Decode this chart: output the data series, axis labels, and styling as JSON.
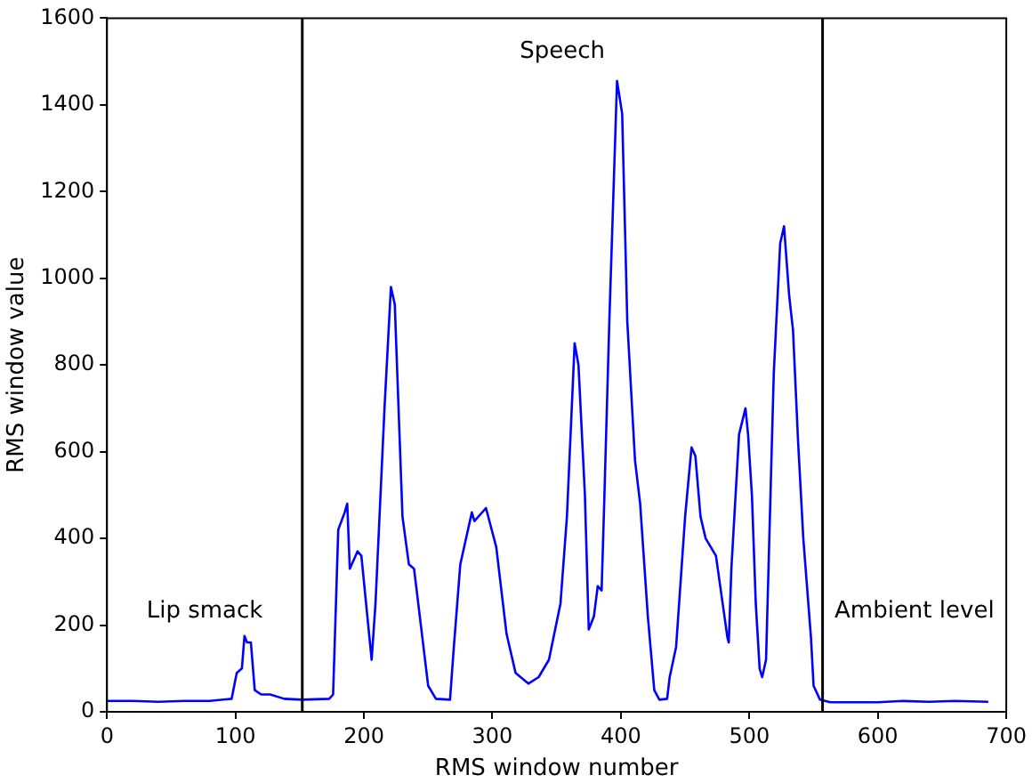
{
  "chart_data": {
    "type": "line",
    "xlabel": "RMS window number",
    "ylabel": "RMS window value",
    "xlim": [
      0,
      700
    ],
    "xticks": [
      0,
      100,
      200,
      300,
      400,
      500,
      600,
      700
    ],
    "ylim": [
      0,
      1600
    ],
    "yticks": [
      0,
      200,
      400,
      600,
      800,
      1000,
      1200,
      1400,
      1600
    ],
    "grid": false,
    "legend": false,
    "marker": "none",
    "line_style": "solid",
    "series": [
      {
        "color": "#0000ff",
        "x": [
          0,
          20,
          40,
          60,
          80,
          97,
          101,
          105,
          107,
          109,
          112,
          115,
          120,
          127,
          138,
          152,
          173,
          176,
          180,
          185,
          187,
          189,
          195,
          198,
          206,
          209,
          216,
          221,
          224,
          230,
          235,
          239,
          250,
          256,
          267,
          270,
          275,
          284,
          286,
          295,
          303,
          311,
          318,
          328,
          336,
          344,
          353,
          358,
          364,
          367,
          372,
          375,
          379,
          382,
          385,
          387,
          391,
          397,
          401,
          405,
          411,
          415,
          421,
          426,
          430,
          436,
          438,
          443,
          450,
          455,
          458,
          462,
          466,
          474,
          483,
          484,
          486,
          492,
          497,
          499,
          502,
          505,
          508,
          510,
          513,
          519,
          524,
          527,
          531,
          534,
          538,
          542,
          548,
          550,
          555,
          563,
          600,
          620,
          640,
          660,
          686
        ],
        "values": [
          25,
          25,
          23,
          25,
          25,
          30,
          90,
          100,
          175,
          160,
          160,
          50,
          40,
          40,
          30,
          28,
          30,
          40,
          420,
          460,
          480,
          330,
          370,
          360,
          120,
          250,
          700,
          980,
          940,
          450,
          340,
          330,
          60,
          30,
          28,
          150,
          340,
          460,
          440,
          470,
          380,
          180,
          90,
          65,
          80,
          120,
          250,
          450,
          850,
          800,
          500,
          190,
          220,
          290,
          280,
          480,
          900,
          1455,
          1380,
          900,
          580,
          480,
          220,
          50,
          28,
          30,
          80,
          150,
          450,
          610,
          590,
          450,
          400,
          360,
          170,
          160,
          330,
          640,
          700,
          640,
          500,
          250,
          100,
          80,
          120,
          780,
          1080,
          1120,
          960,
          880,
          620,
          400,
          170,
          60,
          28,
          22,
          22,
          25,
          23,
          25,
          23
        ]
      }
    ],
    "ref_lines": [
      {
        "axis": "x",
        "value": 152,
        "color": "#000000"
      },
      {
        "axis": "x",
        "value": 557,
        "color": "#000000"
      }
    ],
    "annotations": [
      "Lip smack",
      "Speech",
      "Ambient level"
    ]
  }
}
